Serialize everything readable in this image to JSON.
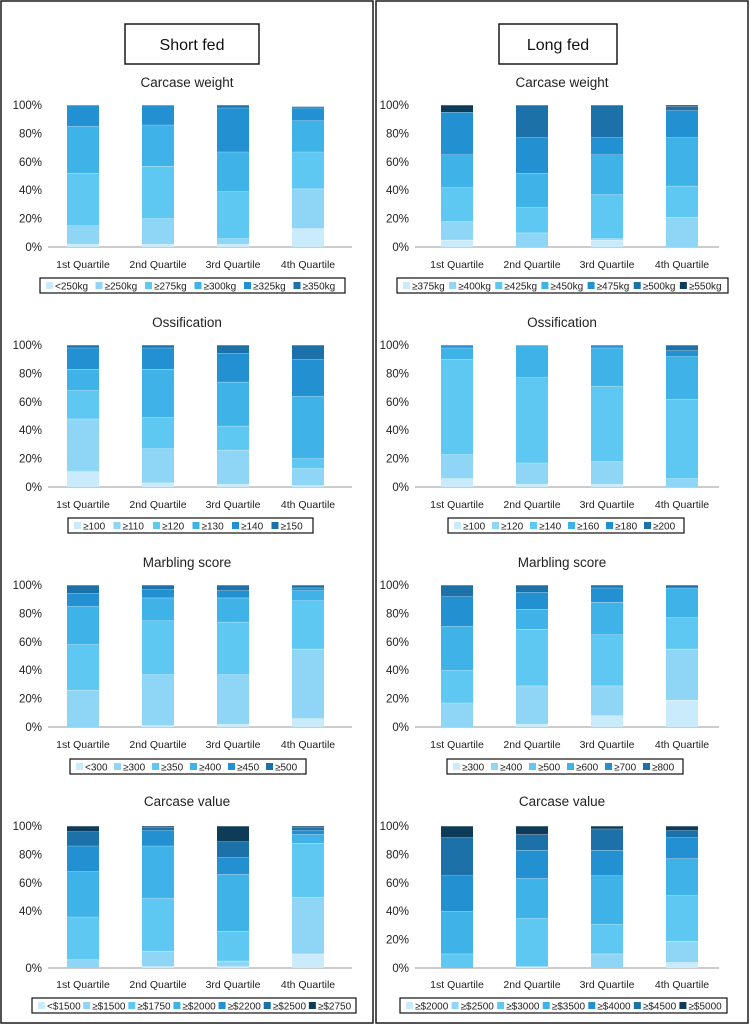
{
  "groups": [
    {
      "title": "Short fed",
      "charts": [
        {
          "title": "Carcase weight",
          "type": "stacked-bar-100",
          "categories": [
            "1st Quartile",
            "2nd Quartile",
            "3rd Quartile",
            "4th Quartile"
          ],
          "yticks": [
            "0%",
            "20%",
            "40%",
            "60%",
            "80%",
            "100%"
          ],
          "series": [
            {
              "name": "<250kg",
              "color": "#c9ebfb",
              "values": [
                2,
                2,
                2,
                13
              ]
            },
            {
              "name": "≥250kg",
              "color": "#8fd6f6",
              "values": [
                13,
                18,
                4,
                28
              ]
            },
            {
              "name": "≥275kg",
              "color": "#5ec8f2",
              "values": [
                37,
                37,
                33,
                26
              ]
            },
            {
              "name": "≥300kg",
              "color": "#3fb2e8",
              "values": [
                33,
                29,
                28,
                22
              ]
            },
            {
              "name": "≥325kg",
              "color": "#2390d1",
              "values": [
                15,
                14,
                31,
                9
              ]
            },
            {
              "name": "≥350kg",
              "color": "#1c71a8",
              "values": [
                0,
                0,
                2,
                1
              ]
            }
          ]
        },
        {
          "title": "Ossification",
          "type": "stacked-bar-100",
          "categories": [
            "1st Quartile",
            "2nd Quartile",
            "3rd Quartile",
            "4th Quartile"
          ],
          "yticks": [
            "0%",
            "20%",
            "40%",
            "60%",
            "80%",
            "100%"
          ],
          "series": [
            {
              "name": "≥100",
              "color": "#c9ebfb",
              "values": [
                11,
                3,
                2,
                1
              ]
            },
            {
              "name": "≥110",
              "color": "#8fd6f6",
              "values": [
                37,
                24,
                24,
                12
              ]
            },
            {
              "name": "≥120",
              "color": "#5ec8f2",
              "values": [
                20,
                22,
                17,
                7
              ]
            },
            {
              "name": "≥130",
              "color": "#3fb2e8",
              "values": [
                15,
                34,
                31,
                44
              ]
            },
            {
              "name": "≥140",
              "color": "#2390d1",
              "values": [
                15,
                15,
                20,
                26
              ]
            },
            {
              "name": "≥150",
              "color": "#1c71a8",
              "values": [
                2,
                2,
                6,
                10
              ]
            }
          ]
        },
        {
          "title": "Marbling score",
          "type": "stacked-bar-100",
          "categories": [
            "1st Quartile",
            "2nd Quartile",
            "3rd Quartile",
            "4th Quartile"
          ],
          "yticks": [
            "0%",
            "20%",
            "40%",
            "60%",
            "80%",
            "100%"
          ],
          "series": [
            {
              "name": "<300",
              "color": "#c9ebfb",
              "values": [
                0,
                1,
                2,
                6
              ]
            },
            {
              "name": "≥300",
              "color": "#8fd6f6",
              "values": [
                26,
                36,
                35,
                49
              ]
            },
            {
              "name": "≥350",
              "color": "#5ec8f2",
              "values": [
                32,
                38,
                37,
                34
              ]
            },
            {
              "name": "≥400",
              "color": "#3fb2e8",
              "values": [
                27,
                16,
                17,
                7
              ]
            },
            {
              "name": "≥450",
              "color": "#2390d1",
              "values": [
                9,
                6,
                5,
                2
              ]
            },
            {
              "name": "≥500",
              "color": "#1c71a8",
              "values": [
                6,
                3,
                4,
                2
              ]
            }
          ]
        },
        {
          "title": "Carcase value",
          "type": "stacked-bar-100",
          "categories": [
            "1st Quartile",
            "2nd Quartile",
            "3rd Quartile",
            "4th Quartile"
          ],
          "yticks": [
            "0%",
            "",
            "40%",
            "60%",
            "80%",
            "100%"
          ],
          "series": [
            {
              "name": "<$1500",
              "color": "#c9ebfb",
              "values": [
                0,
                1,
                1,
                10
              ]
            },
            {
              "name": "≥$1500",
              "color": "#8fd6f6",
              "values": [
                6,
                11,
                4,
                40
              ]
            },
            {
              "name": "≥$1750",
              "color": "#5ec8f2",
              "values": [
                30,
                37,
                21,
                38
              ]
            },
            {
              "name": "≥$2000",
              "color": "#3fb2e8",
              "values": [
                32,
                37,
                40,
                6
              ]
            },
            {
              "name": "≥$2200",
              "color": "#2390d1",
              "values": [
                18,
                11,
                12,
                3
              ]
            },
            {
              "name": "≥$2500",
              "color": "#1c71a8",
              "values": [
                10,
                2,
                11,
                2
              ]
            },
            {
              "name": "≥$2750",
              "color": "#0d3b58",
              "values": [
                4,
                1,
                11,
                1
              ]
            }
          ]
        }
      ]
    },
    {
      "title": "Long fed",
      "charts": [
        {
          "title": "Carcase weight",
          "type": "stacked-bar-100",
          "categories": [
            "1st Quartile",
            "2nd Quartile",
            "3rd Quartile",
            "4th Quartile"
          ],
          "yticks": [
            "0%",
            "20%",
            "40%",
            "60%",
            "80%",
            "100%"
          ],
          "series": [
            {
              "name": "≥375kg",
              "color": "#c9ebfb",
              "values": [
                5,
                0,
                5,
                0
              ]
            },
            {
              "name": "≥400kg",
              "color": "#8fd6f6",
              "values": [
                13,
                10,
                1,
                21
              ]
            },
            {
              "name": "≥425kg",
              "color": "#5ec8f2",
              "values": [
                24,
                18,
                31,
                22
              ]
            },
            {
              "name": "≥450kg",
              "color": "#3fb2e8",
              "values": [
                23,
                24,
                28,
                34
              ]
            },
            {
              "name": "≥475kg",
              "color": "#2390d1",
              "values": [
                30,
                25,
                12,
                19
              ]
            },
            {
              "name": "≥500kg",
              "color": "#1c71a8",
              "values": [
                0,
                23,
                23,
                3
              ]
            },
            {
              "name": "≥550kg",
              "color": "#0d3b58",
              "values": [
                5,
                0,
                0,
                1
              ]
            }
          ]
        },
        {
          "title": "Ossification",
          "type": "stacked-bar-100",
          "categories": [
            "1st Quartile",
            "2nd Quartile",
            "3rd Quartile",
            "4th Quartile"
          ],
          "yticks": [
            "0%",
            "20%",
            "40%",
            "60%",
            "80%",
            "100%"
          ],
          "series": [
            {
              "name": "≥100",
              "color": "#c9ebfb",
              "values": [
                6,
                2,
                2,
                0
              ]
            },
            {
              "name": "≥120",
              "color": "#8fd6f6",
              "values": [
                17,
                15,
                16,
                6
              ]
            },
            {
              "name": "≥140",
              "color": "#5ec8f2",
              "values": [
                67,
                60,
                53,
                56
              ]
            },
            {
              "name": "≥160",
              "color": "#3fb2e8",
              "values": [
                8,
                23,
                27,
                30
              ]
            },
            {
              "name": "≥180",
              "color": "#2390d1",
              "values": [
                2,
                0,
                2,
                4
              ]
            },
            {
              "name": "≥200",
              "color": "#1c71a8",
              "values": [
                0,
                0,
                0,
                4
              ]
            }
          ]
        },
        {
          "title": "Marbling score",
          "type": "stacked-bar-100",
          "categories": [
            "1st Quartile",
            "2nd Quartile",
            "3rd Quartile",
            "4th Quartile"
          ],
          "yticks": [
            "0%",
            "20%",
            "40%",
            "60%",
            "80%",
            "100%"
          ],
          "series": [
            {
              "name": "≥300",
              "color": "#c9ebfb",
              "values": [
                0,
                2,
                8,
                19
              ]
            },
            {
              "name": "≥400",
              "color": "#8fd6f6",
              "values": [
                17,
                27,
                21,
                36
              ]
            },
            {
              "name": "≥500",
              "color": "#5ec8f2",
              "values": [
                23,
                40,
                36,
                22
              ]
            },
            {
              "name": "≥600",
              "color": "#3fb2e8",
              "values": [
                31,
                14,
                23,
                21
              ]
            },
            {
              "name": "≥700",
              "color": "#2390d1",
              "values": [
                21,
                12,
                10,
                0
              ]
            },
            {
              "name": "≥800",
              "color": "#1c71a8",
              "values": [
                8,
                5,
                2,
                2
              ]
            }
          ]
        },
        {
          "title": "Carcase value",
          "type": "stacked-bar-100",
          "categories": [
            "1st Quartile",
            "2nd Quartile",
            "3rd Quartile",
            "4th Quartile"
          ],
          "yticks": [
            "0%",
            "20%",
            "40%",
            "60%",
            "80%",
            "100%"
          ],
          "series": [
            {
              "name": "≥$2000",
              "color": "#c9ebfb",
              "values": [
                0,
                1,
                0,
                4
              ]
            },
            {
              "name": "≥$2500",
              "color": "#8fd6f6",
              "values": [
                0,
                0,
                10,
                15
              ]
            },
            {
              "name": "≥$3000",
              "color": "#5ec8f2",
              "values": [
                10,
                34,
                21,
                32
              ]
            },
            {
              "name": "≥$3500",
              "color": "#3fb2e8",
              "values": [
                30,
                28,
                34,
                26
              ]
            },
            {
              "name": "≥$4000",
              "color": "#2390d1",
              "values": [
                25,
                20,
                18,
                15
              ]
            },
            {
              "name": "≥$4500",
              "color": "#1c71a8",
              "values": [
                27,
                11,
                15,
                5
              ]
            },
            {
              "name": "≥$5000",
              "color": "#0d3b58",
              "values": [
                8,
                6,
                2,
                3
              ]
            }
          ]
        }
      ]
    }
  ]
}
